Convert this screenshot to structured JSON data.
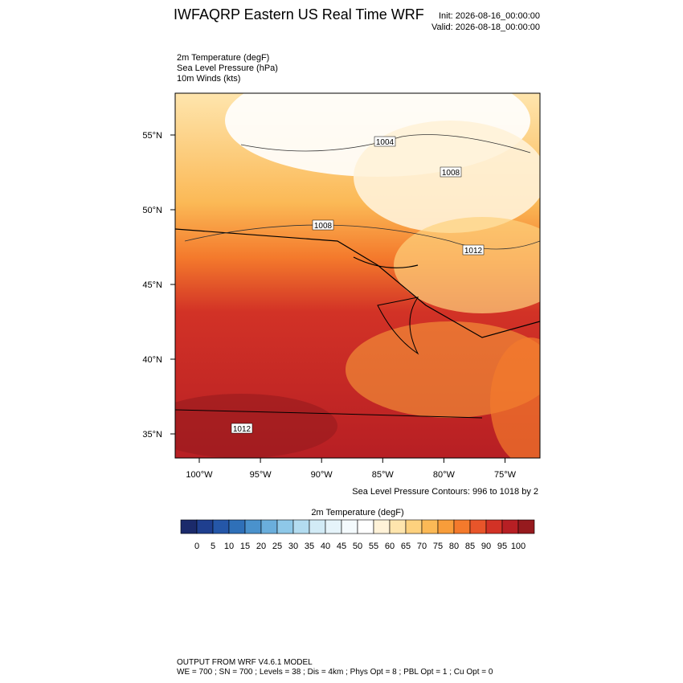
{
  "header": {
    "title": "IWFAQRP Eastern US Real Time WRF",
    "init": "Init: 2026-08-16_00:00:00",
    "valid": "Valid: 2026-08-18_00:00:00"
  },
  "fields": [
    "2m Temperature   (degF)",
    "Sea Level Pressure   (hPa)",
    "10m Winds   (kts)"
  ],
  "map": {
    "lat_ticks": [
      {
        "value": 55,
        "label": "55°N"
      },
      {
        "value": 50,
        "label": "50°N"
      },
      {
        "value": 45,
        "label": "45°N"
      },
      {
        "value": 40,
        "label": "40°N"
      },
      {
        "value": 35,
        "label": "35°N"
      }
    ],
    "lon_ticks": [
      {
        "value": -100,
        "label": "100°W"
      },
      {
        "value": -95,
        "label": "95°W"
      },
      {
        "value": -90,
        "label": "90°W"
      },
      {
        "value": -85,
        "label": "85°W"
      },
      {
        "value": -80,
        "label": "80°W"
      },
      {
        "value": -75,
        "label": "75°W"
      }
    ],
    "pressure_labels": [
      "1004",
      "1008",
      "1008",
      "1012",
      "1012"
    ],
    "contour_note": "Sea Level Pressure Contours: 996 to 1018 by 2"
  },
  "colorbar": {
    "title": "2m Temperature  (degF)",
    "labels": [
      0,
      5,
      10,
      15,
      20,
      25,
      30,
      35,
      40,
      45,
      50,
      55,
      60,
      65,
      70,
      75,
      80,
      85,
      90,
      95,
      100
    ],
    "colors": [
      "#1b2a6b",
      "#1f3f8f",
      "#2557a8",
      "#2f70b8",
      "#4a92cc",
      "#6aaedc",
      "#8ec8e8",
      "#b3dcf0",
      "#d2ebf6",
      "#e6f4fa",
      "#f4fafd",
      "#ffffff",
      "#fff2d8",
      "#fee5ad",
      "#fdd17e",
      "#fbb956",
      "#f89d3a",
      "#f47a2c",
      "#e8552a",
      "#d23226",
      "#b71f24",
      "#961a1e"
    ]
  },
  "footer": [
    "OUTPUT FROM WRF V4.6.1 MODEL",
    "WE = 700 ; SN = 700 ; Levels = 38 ; Dis = 4km ; Phys Opt = 8 ; PBL Opt = 1 ; Cu Opt = 0"
  ]
}
